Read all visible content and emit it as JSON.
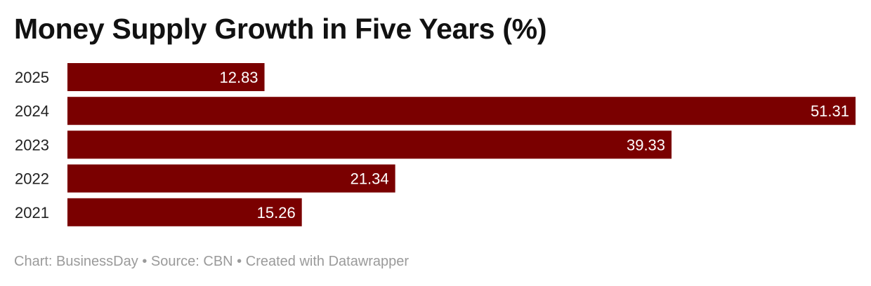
{
  "chart_data": {
    "type": "bar",
    "orientation": "horizontal",
    "title": "Money Supply Growth in Five Years (%)",
    "categories": [
      "2025",
      "2024",
      "2023",
      "2022",
      "2021"
    ],
    "values": [
      12.83,
      51.31,
      39.33,
      21.34,
      15.26
    ],
    "value_labels": [
      "12.83",
      "51.31",
      "39.33",
      "21.34",
      "15.26"
    ],
    "xlim": [
      0,
      51.31
    ],
    "grid": false,
    "legend": "none",
    "bar_color": "#7a0000",
    "label_color": "#ffffff"
  },
  "footer": {
    "credit": "Chart: BusinessDay",
    "separator": "•",
    "source": "Source: CBN",
    "created_with": "Created with Datawrapper"
  }
}
